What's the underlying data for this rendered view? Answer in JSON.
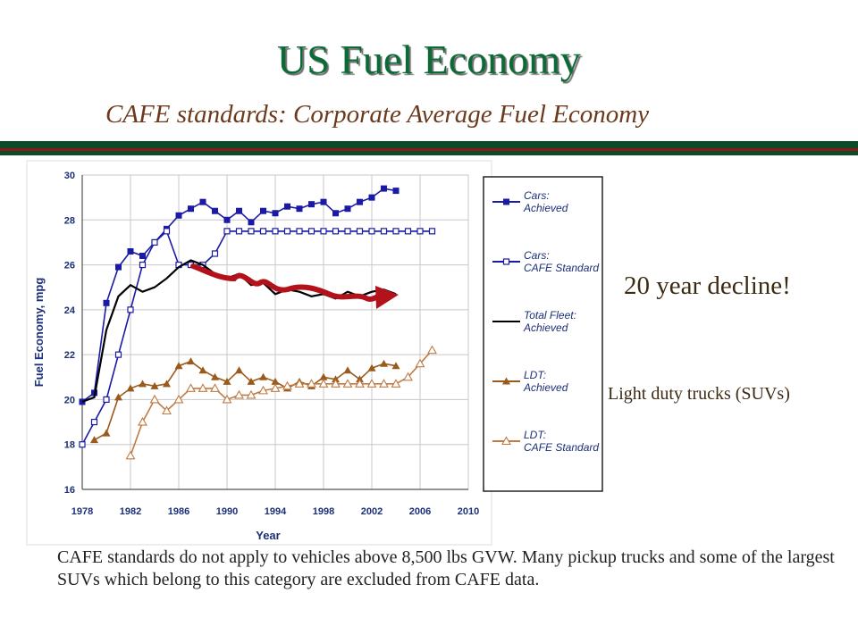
{
  "slide": {
    "title": "US Fuel Economy",
    "subtitle": "CAFE standards: Corporate Average Fuel Economy",
    "callout_decline": "20 year decline!",
    "callout_trucks": "Light duty trucks (SUVs)",
    "footnote": "CAFE standards do not apply to vehicles above 8,500 lbs GVW. Many pickup trucks and some of the largest SUVs which belong to this category are excluded from CAFE data.",
    "colors": {
      "title": "#0b6b36",
      "subtitle": "#6b3a1c",
      "stripe_green": "#0b4a2a",
      "stripe_red": "#8b1a14",
      "arrow": "#b3121b"
    }
  },
  "chart_data": {
    "type": "line",
    "xlabel": "Year",
    "ylabel": "Fuel Economy, mpg",
    "xlim": [
      1978,
      2010
    ],
    "ylim": [
      16,
      30
    ],
    "x_ticks": [
      "1978",
      "1982",
      "1986",
      "1990",
      "1994",
      "1998",
      "2002",
      "2006",
      "2010"
    ],
    "y_ticks": [
      "16",
      "18",
      "20",
      "22",
      "24",
      "26",
      "28",
      "30"
    ],
    "grid": true,
    "legend_position": "right",
    "series": [
      {
        "name": "Cars: Achieved",
        "color": "#1a1aa6",
        "marker": "square-filled",
        "x": [
          1978,
          1979,
          1980,
          1981,
          1982,
          1983,
          1984,
          1985,
          1986,
          1987,
          1988,
          1989,
          1990,
          1991,
          1992,
          1993,
          1994,
          1995,
          1996,
          1997,
          1998,
          1999,
          2000,
          2001,
          2002,
          2003,
          2004
        ],
        "y": [
          19.9,
          20.3,
          24.3,
          25.9,
          26.6,
          26.4,
          27.0,
          27.6,
          28.2,
          28.5,
          28.8,
          28.4,
          28.0,
          28.4,
          27.9,
          28.4,
          28.3,
          28.6,
          28.5,
          28.7,
          28.8,
          28.3,
          28.5,
          28.8,
          29.0,
          29.4,
          29.3
        ]
      },
      {
        "name": "Cars: CAFE Standard",
        "color": "#1a1aa6",
        "marker": "square-open",
        "x": [
          1978,
          1979,
          1980,
          1981,
          1982,
          1983,
          1984,
          1985,
          1986,
          1987,
          1988,
          1989,
          1990,
          1991,
          1992,
          1993,
          1994,
          1995,
          1996,
          1997,
          1998,
          1999,
          2000,
          2001,
          2002,
          2003,
          2004,
          2005,
          2006,
          2007
        ],
        "y": [
          18.0,
          19.0,
          20.0,
          22.0,
          24.0,
          26.0,
          27.0,
          27.5,
          26.0,
          26.0,
          26.0,
          26.5,
          27.5,
          27.5,
          27.5,
          27.5,
          27.5,
          27.5,
          27.5,
          27.5,
          27.5,
          27.5,
          27.5,
          27.5,
          27.5,
          27.5,
          27.5,
          27.5,
          27.5,
          27.5
        ]
      },
      {
        "name": "Total Fleet: Achieved",
        "color": "#000000",
        "marker": "none",
        "x": [
          1978,
          1979,
          1980,
          1981,
          1982,
          1983,
          1984,
          1985,
          1986,
          1987,
          1988,
          1989,
          1990,
          1991,
          1992,
          1993,
          1994,
          1995,
          1996,
          1997,
          1998,
          1999,
          2000,
          2001,
          2002,
          2003,
          2004
        ],
        "y": [
          19.9,
          20.1,
          23.1,
          24.6,
          25.1,
          24.8,
          25.0,
          25.4,
          25.9,
          26.2,
          26.0,
          25.6,
          25.4,
          25.6,
          25.1,
          25.2,
          24.7,
          24.9,
          24.8,
          24.6,
          24.7,
          24.5,
          24.8,
          24.6,
          24.8,
          24.9,
          24.7
        ]
      },
      {
        "name": "LDT: Achieved",
        "color": "#9a5a1b",
        "marker": "triangle-filled",
        "x": [
          1979,
          1980,
          1981,
          1982,
          1983,
          1984,
          1985,
          1986,
          1987,
          1988,
          1989,
          1990,
          1991,
          1992,
          1993,
          1994,
          1995,
          1996,
          1997,
          1998,
          1999,
          2000,
          2001,
          2002,
          2003,
          2004
        ],
        "y": [
          18.2,
          18.5,
          20.1,
          20.5,
          20.7,
          20.6,
          20.7,
          21.5,
          21.7,
          21.3,
          21.0,
          20.8,
          21.3,
          20.8,
          21.0,
          20.8,
          20.5,
          20.8,
          20.6,
          21.0,
          20.9,
          21.3,
          20.9,
          21.4,
          21.6,
          21.5
        ]
      },
      {
        "name": "LDT: CAFE Standard",
        "color": "#c07a43",
        "marker": "triangle-open",
        "x": [
          1982,
          1983,
          1984,
          1985,
          1986,
          1987,
          1988,
          1989,
          1990,
          1991,
          1992,
          1993,
          1994,
          1995,
          1996,
          1997,
          1998,
          1999,
          2000,
          2001,
          2002,
          2003,
          2004,
          2005,
          2006,
          2007
        ],
        "y": [
          17.5,
          19.0,
          20.0,
          19.5,
          20.0,
          20.5,
          20.5,
          20.5,
          20.0,
          20.2,
          20.2,
          20.4,
          20.5,
          20.6,
          20.7,
          20.7,
          20.7,
          20.7,
          20.7,
          20.7,
          20.7,
          20.7,
          20.7,
          21.0,
          21.6,
          22.2
        ]
      }
    ]
  }
}
